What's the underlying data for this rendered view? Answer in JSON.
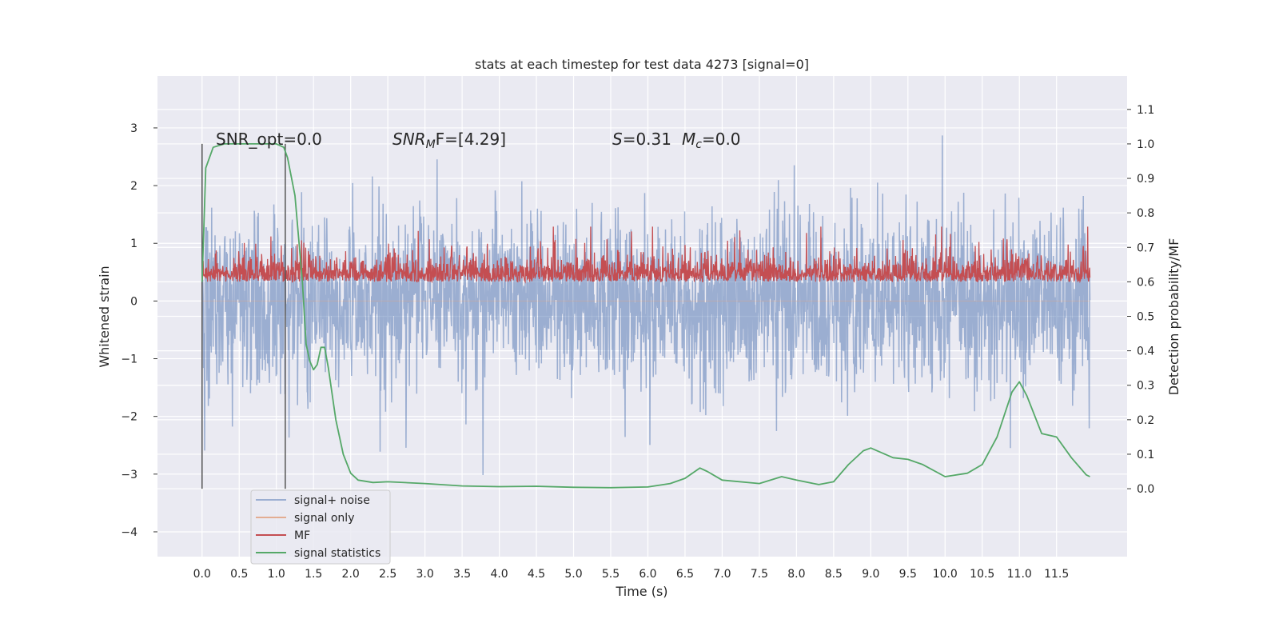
{
  "chart_data": {
    "type": "line",
    "title": "stats at each timestep for test data 4273 [signal=0]",
    "xlabel": "Time (s)",
    "ylabel": "Whitened strain",
    "ylabel_right": "Detection probability/MF",
    "xlim": [
      -0.6,
      12.45
    ],
    "ylim": [
      -4.43,
      3.9
    ],
    "ylim_right": [
      -0.197,
      1.197
    ],
    "grid": true,
    "x_ticks": [
      "0.0",
      "0.5",
      "1.0",
      "1.5",
      "2.0",
      "2.5",
      "3.0",
      "3.5",
      "4.0",
      "4.5",
      "5.0",
      "5.5",
      "6.0",
      "6.5",
      "7.0",
      "7.5",
      "8.0",
      "8.5",
      "9.0",
      "9.5",
      "10.0",
      "10.5",
      "11.0",
      "11.5"
    ],
    "y_ticks": [
      "3",
      "2",
      "1",
      "0",
      "−1",
      "−2",
      "−3",
      "−4"
    ],
    "y_ticks_right": [
      "1.1",
      "1.0",
      "0.9",
      "0.8",
      "0.7",
      "0.6",
      "0.5",
      "0.4",
      "0.3",
      "0.2",
      "0.1",
      "0.0"
    ],
    "annotations": {
      "snr_opt": "SNR_opt=0.0",
      "snr_mf_prefix": "SNR",
      "snr_mf_sub": "M",
      "snr_mf_suffix": "F=[4.29]",
      "s_label": "S",
      "s_value": "=0.31",
      "mc_label": "M",
      "mc_sub": "c",
      "mc_value": "=0.0"
    },
    "vertical_markers": {
      "x": [
        0.0,
        1.12
      ],
      "y_range_right": [
        0.0,
        1.0
      ]
    },
    "legend": {
      "placement": "lower-left",
      "entries": [
        "signal+ noise",
        "signal only",
        "MF",
        "signal statistics"
      ]
    },
    "colors": {
      "signal_noise": "#4c72b0",
      "signal_only": "#dd8452",
      "mf": "#c44e52",
      "signal_statistics": "#55a868",
      "background": "#eaeaf2",
      "grid": "#ffffff"
    },
    "series": [
      {
        "name": "signal+ noise",
        "axis": "left",
        "x_range": [
          0.0,
          11.95
        ],
        "approx_mean": 0.0,
        "approx_min": -4.1,
        "approx_max": 3.55
      },
      {
        "name": "signal only",
        "axis": "left",
        "values_constant": 0.0
      },
      {
        "name": "MF",
        "axis": "right",
        "x_range": [
          0.0,
          11.95
        ],
        "approx_mean": 0.63,
        "approx_min": 0.54,
        "approx_max": 0.76
      },
      {
        "name": "signal statistics",
        "axis": "right",
        "x": [
          0,
          0.05,
          0.15,
          0.3,
          0.5,
          0.8,
          1.0,
          1.1,
          1.15,
          1.25,
          1.35,
          1.4,
          1.45,
          1.5,
          1.55,
          1.6,
          1.65,
          1.7,
          1.8,
          1.9,
          2.0,
          2.1,
          2.3,
          2.5,
          3.0,
          3.5,
          4.0,
          4.5,
          5.0,
          5.5,
          6.0,
          6.3,
          6.5,
          6.7,
          6.8,
          7.0,
          7.5,
          7.8,
          8.0,
          8.3,
          8.5,
          8.7,
          8.9,
          9.0,
          9.3,
          9.5,
          9.7,
          10.0,
          10.3,
          10.5,
          10.7,
          10.9,
          11.0,
          11.1,
          11.3,
          11.5,
          11.7,
          11.9,
          11.95
        ],
        "y": [
          0.6,
          0.93,
          0.99,
          1.0,
          1.0,
          1.0,
          1.0,
          0.99,
          0.96,
          0.85,
          0.6,
          0.42,
          0.37,
          0.345,
          0.36,
          0.41,
          0.41,
          0.35,
          0.2,
          0.1,
          0.045,
          0.025,
          0.018,
          0.02,
          0.015,
          0.008,
          0.006,
          0.007,
          0.004,
          0.003,
          0.005,
          0.015,
          0.03,
          0.06,
          0.05,
          0.025,
          0.015,
          0.035,
          0.025,
          0.012,
          0.02,
          0.07,
          0.11,
          0.118,
          0.09,
          0.085,
          0.07,
          0.035,
          0.045,
          0.07,
          0.15,
          0.28,
          0.31,
          0.27,
          0.16,
          0.15,
          0.09,
          0.04,
          0.035
        ]
      }
    ]
  }
}
